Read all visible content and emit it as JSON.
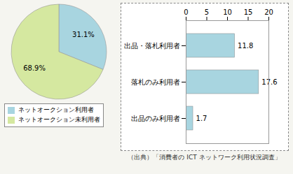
{
  "chart_data": [
    {
      "type": "pie",
      "categories": [
        "ネットオークション利用者",
        "ネットオークション未利用者"
      ],
      "values": [
        31.1,
        68.9
      ],
      "value_labels": [
        "31.1%",
        "68.9%"
      ],
      "colors": [
        "#a8d5e0",
        "#d5e8a0"
      ],
      "data_labels": true,
      "legend": "lower left"
    },
    {
      "type": "bar",
      "orientation": "horizontal",
      "categories": [
        "出品・落札利用者",
        "落札のみ利用者",
        "出品のみ利用者"
      ],
      "values": [
        11.8,
        17.6,
        1.7
      ],
      "color": "#a8d5e0",
      "xlim": [
        0,
        20
      ],
      "xticks": [
        0,
        5,
        10,
        15,
        20
      ],
      "data_labels": true,
      "annotations": [
        "（出典）「消費者の ICT ネットワーク利用状況調査」"
      ]
    }
  ]
}
